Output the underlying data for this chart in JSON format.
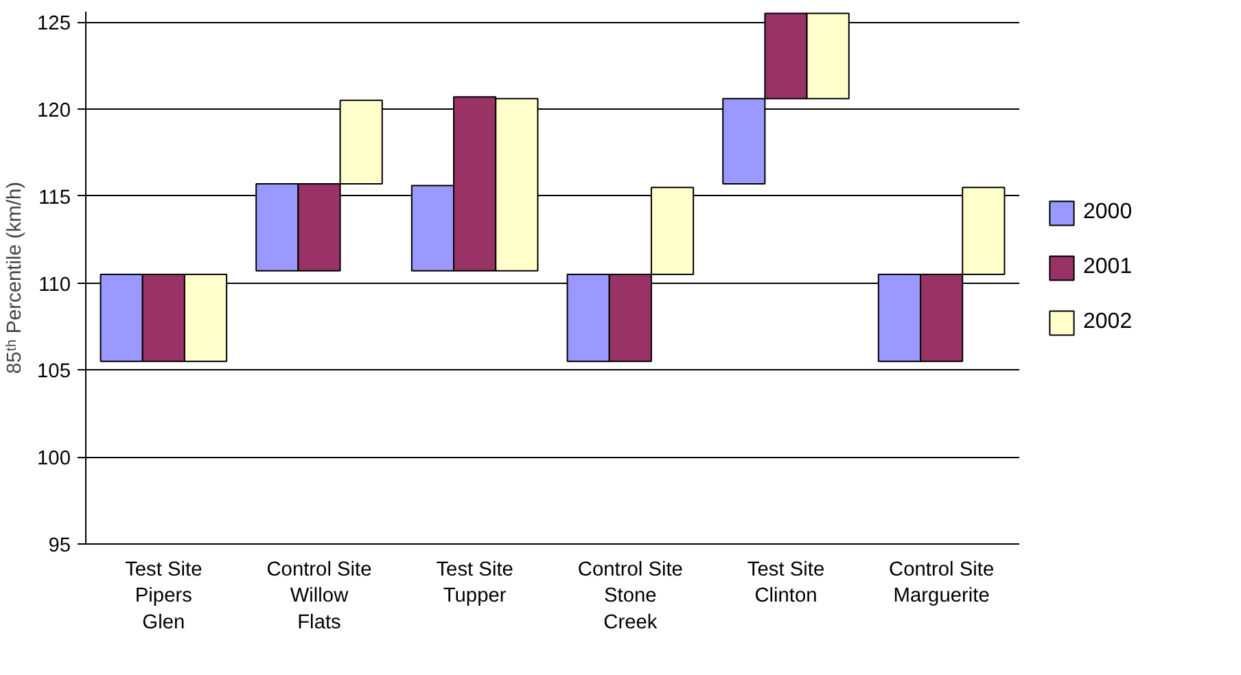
{
  "chart_data": {
    "type": "bar",
    "ylabel": "85ᵗʰ Percentile (km/h)",
    "categories": [
      "Test Site\nPipers\nGlen",
      "Control Site\nWillow\nFlats",
      "Test Site\nTupper",
      "Control Site\nStone\nCreek",
      "Test Site\nClinton",
      "Control Site\nMarguerite"
    ],
    "series": [
      {
        "name": "2000",
        "color": "#9999ff",
        "base": [
          105.5,
          110.7,
          110.7,
          105.5,
          115.7,
          105.5
        ],
        "values": [
          5.0,
          5.0,
          4.9,
          5.0,
          4.9,
          5.0
        ]
      },
      {
        "name": "2001",
        "color": "#993366",
        "base": [
          105.5,
          110.7,
          110.7,
          105.5,
          120.6,
          105.5
        ],
        "values": [
          5.0,
          5.0,
          10.0,
          5.0,
          4.9,
          5.0
        ]
      },
      {
        "name": "2002",
        "color": "#ffffcc",
        "base": [
          105.5,
          115.7,
          110.7,
          110.5,
          120.6,
          110.5
        ],
        "values": [
          5.0,
          4.8,
          9.9,
          5.0,
          4.9,
          5.0
        ]
      }
    ],
    "ylim": [
      95,
      125.6
    ],
    "yticks": [
      95,
      100,
      105,
      110,
      115,
      120,
      125
    ],
    "grid": "y",
    "legend": "right"
  }
}
